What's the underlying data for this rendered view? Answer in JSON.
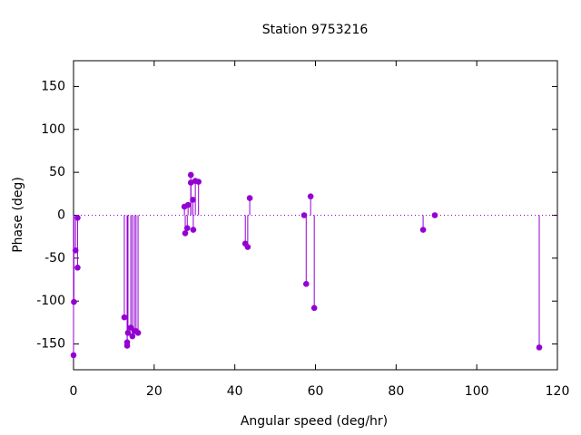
{
  "chart_data": {
    "type": "stem",
    "title": "Station 9753216",
    "x_label": "Angular speed (deg/hr)",
    "y_label": "Phase (deg)",
    "color": "#9400d3",
    "zero_line": true,
    "x": [
      0,
      0.1,
      0.5,
      1,
      1,
      12.6,
      13.3,
      13.3,
      13.5,
      14.2,
      14.6,
      15.1,
      15.5,
      16,
      27.5,
      27.7,
      28.2,
      28.4,
      29.1,
      29.1,
      29.6,
      29.7,
      30.2,
      31,
      42.6,
      43.2,
      43.7,
      57.2,
      57.7,
      58.8,
      59.7,
      86.7,
      89.6,
      115.5
    ],
    "values": [
      -163,
      -101,
      -41,
      -61,
      -3,
      -119,
      -148,
      -152,
      -137,
      -131,
      -141,
      -135,
      -135,
      -137,
      10,
      -21,
      -15,
      12,
      47,
      38,
      18,
      -17,
      40,
      39,
      -33,
      -37,
      20,
      0,
      -80,
      22,
      -108,
      -17,
      0,
      -154
    ],
    "xlim": [
      0,
      120
    ],
    "xticks": [
      0,
      20,
      40,
      60,
      80,
      100,
      120
    ],
    "ylim": [
      -180,
      180
    ],
    "yticks": [
      -150,
      -100,
      -50,
      0,
      50,
      100,
      150
    ]
  }
}
